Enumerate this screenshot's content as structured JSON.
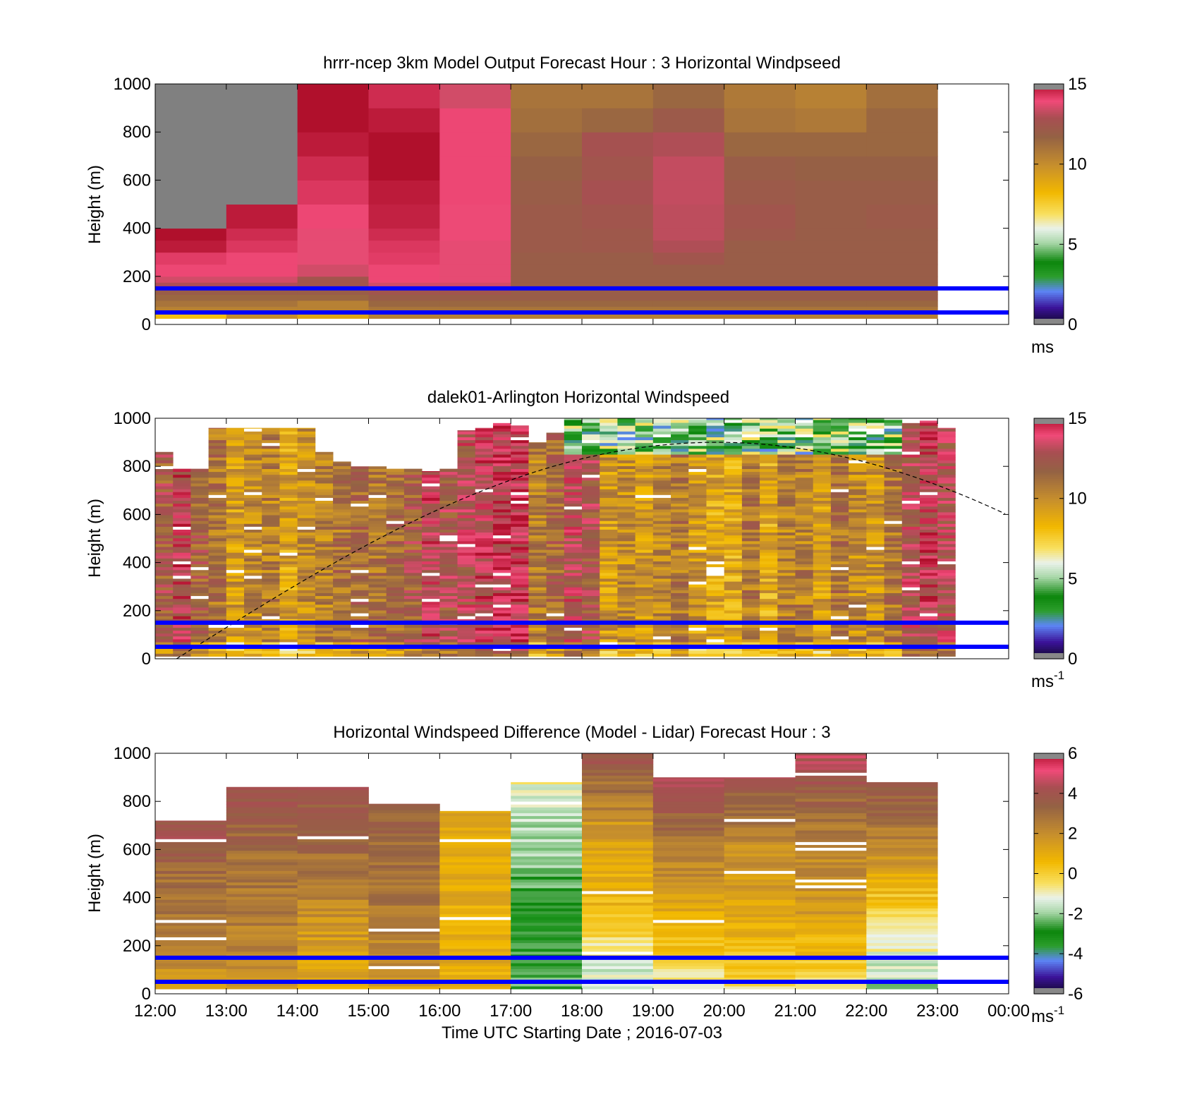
{
  "chart_data": [
    {
      "type": "heatmap",
      "title": "hrrr-ncep 3km Model Output   Forecast Hour : 3 Horizontal Windpseed",
      "ylabel": "Height (m)",
      "ylim": [
        0,
        1000
      ],
      "yticks": [
        "0",
        "200",
        "400",
        "600",
        "800",
        "1000"
      ],
      "x_range_hours": [
        12,
        24
      ],
      "colorbar": {
        "ticks": [
          "0",
          "5",
          "10",
          "15"
        ],
        "range": [
          0,
          15
        ],
        "unit": "ms",
        "unit_sup": ""
      },
      "reference_lines_m": [
        150,
        50
      ],
      "time_bins_start_hours": [
        12,
        13,
        14,
        15,
        16,
        17,
        18,
        19,
        20,
        21,
        22
      ],
      "height_levels_m": [
        25,
        50,
        75,
        100,
        125,
        150,
        175,
        200,
        250,
        300,
        350,
        400,
        500,
        600,
        700,
        800,
        900,
        1000
      ],
      "values": [
        [
          8.0,
          10.0,
          9.0,
          10.5,
          10.5,
          10.5,
          10.5,
          10.5,
          10.5,
          10.5,
          10.5
        ],
        [
          10.5,
          10.5,
          10.5,
          11.0,
          11.0,
          11.0,
          11.0,
          11.0,
          11.0,
          11.0,
          11.0
        ],
        [
          11.0,
          11.0,
          10.5,
          11.5,
          11.5,
          11.5,
          11.5,
          11.5,
          11.5,
          11.5,
          11.5
        ],
        [
          11.5,
          11.5,
          11.5,
          12.0,
          12.0,
          12.0,
          12.0,
          12.0,
          12.0,
          12.0,
          12.0
        ],
        [
          12.0,
          12.0,
          12.0,
          12.5,
          12.5,
          12.0,
          12.0,
          12.0,
          12.0,
          12.0,
          12.0
        ],
        [
          13.0,
          13.0,
          12.5,
          13.5,
          13.5,
          12.0,
          12.0,
          12.0,
          12.0,
          12.0,
          12.0
        ],
        [
          13.5,
          13.5,
          12.5,
          14.0,
          13.8,
          12.0,
          12.0,
          12.0,
          12.0,
          12.0,
          12.0
        ],
        [
          14.0,
          14.0,
          13.5,
          14.0,
          13.8,
          12.0,
          12.0,
          12.0,
          12.0,
          12.0,
          12.0
        ],
        [
          14.2,
          14.0,
          13.8,
          14.2,
          13.8,
          12.0,
          12.0,
          12.5,
          12.0,
          12.0,
          12.0
        ],
        [
          14.8,
          14.3,
          13.8,
          14.3,
          13.8,
          12.2,
          12.3,
          13.0,
          12.0,
          12.0,
          12.0
        ],
        [
          15.0,
          14.5,
          13.8,
          14.5,
          13.9,
          12.2,
          12.3,
          13.2,
          12.3,
          12.0,
          12.0
        ],
        [
          null,
          14.8,
          14.0,
          14.7,
          13.9,
          12.2,
          12.5,
          13.2,
          12.5,
          12.0,
          12.2
        ],
        [
          null,
          null,
          14.3,
          14.8,
          14.0,
          12.0,
          12.8,
          13.3,
          12.2,
          12.0,
          12.0
        ],
        [
          null,
          null,
          14.5,
          15.0,
          14.0,
          11.8,
          12.5,
          13.3,
          12.0,
          11.8,
          11.8
        ],
        [
          null,
          null,
          14.8,
          15.0,
          14.0,
          11.5,
          12.7,
          13.0,
          11.5,
          11.5,
          11.5
        ],
        [
          null,
          null,
          15.0,
          14.8,
          14.0,
          11.2,
          11.5,
          12.2,
          11.0,
          10.8,
          11.5
        ],
        [
          null,
          null,
          15.0,
          14.5,
          13.5,
          11.0,
          11.0,
          11.5,
          10.8,
          10.5,
          11.2
        ]
      ]
    },
    {
      "type": "heatmap",
      "title": "dalek01-Arlington  Horizontal Windspeed",
      "ylabel": "Height (m)",
      "ylim": [
        0,
        1000
      ],
      "yticks": [
        "0",
        "200",
        "400",
        "600",
        "800",
        "1000"
      ],
      "x_range_hours": [
        12,
        24
      ],
      "colorbar": {
        "ticks": [
          "0",
          "5",
          "10",
          "15"
        ],
        "range": [
          0,
          15
        ],
        "unit": "ms",
        "unit_sup": "-1"
      },
      "reference_lines_m": [
        150,
        50
      ],
      "column_width_hours": 0.25,
      "column_tops_m": [
        860,
        790,
        790,
        960,
        960,
        960,
        960,
        960,
        960,
        860,
        820,
        800,
        800,
        790,
        790,
        780,
        790,
        950,
        960,
        980,
        970,
        900,
        940,
        1000,
        1000,
        1000,
        1000,
        1000,
        1000,
        1000,
        1000,
        1000,
        1000,
        1000,
        1000,
        1000,
        1000,
        1000,
        1000,
        1000,
        1000,
        1000,
        980,
        990,
        960
      ],
      "column_mean_speed": [
        12.0,
        13.5,
        11.8,
        11.0,
        9.5,
        10.2,
        10.5,
        9.2,
        10.0,
        10.5,
        11.0,
        11.5,
        11.0,
        11.5,
        12.0,
        13.5,
        12.5,
        13.0,
        13.5,
        13.8,
        14.0,
        10.5,
        11.5,
        13.0,
        12.5,
        9.5,
        10.0,
        9.5,
        10.0,
        10.8,
        9.5,
        9.0,
        9.0,
        10.8,
        9.0,
        10.5,
        10.5,
        9.5,
        11.0,
        10.0,
        9.8,
        11.0,
        13.0,
        13.5,
        13.0
      ],
      "overlay_curve": {
        "style": "dashed",
        "peak_height_m": 900,
        "peak_time_hours": 19.9
      }
    },
    {
      "type": "heatmap",
      "title": "Horizontal Windspeed Difference (Model - Lidar) Forecast Hour : 3",
      "ylabel": "Height (m)",
      "xlabel": "Time UTC  Starting Date ; 2016-07-03",
      "ylim": [
        0,
        1000
      ],
      "yticks": [
        "0",
        "200",
        "400",
        "600",
        "800",
        "1000"
      ],
      "xticks": [
        "12:00",
        "13:00",
        "14:00",
        "15:00",
        "16:00",
        "17:00",
        "18:00",
        "19:00",
        "20:00",
        "21:00",
        "22:00",
        "23:00",
        "00:00"
      ],
      "x_range_hours": [
        12,
        24
      ],
      "colorbar": {
        "ticks": [
          "-6",
          "-4",
          "-2",
          "0",
          "2",
          "4",
          "6"
        ],
        "range": [
          -6,
          6
        ],
        "unit": "ms",
        "unit_sup": "-1"
      },
      "reference_lines_m": [
        150,
        50
      ],
      "time_bins_start_hours": [
        12,
        13,
        14,
        15,
        16,
        17,
        18,
        19,
        20,
        21,
        22
      ],
      "column_tops_m": [
        720,
        860,
        860,
        790,
        760,
        880,
        1000,
        900,
        900,
        1000,
        880
      ],
      "column_difference_low_to_high": [
        [
          1.5,
          2.5,
          3.0,
          4.2
        ],
        [
          1.8,
          2.5,
          3.0,
          4.0
        ],
        [
          1.0,
          1.8,
          3.0,
          4.0
        ],
        [
          1.5,
          2.5,
          3.0,
          3.5
        ],
        [
          1.0,
          1.0,
          1.0,
          1.5
        ],
        [
          -2.5,
          -3.0,
          -2.0,
          -1.0
        ],
        [
          -2.0,
          0.5,
          1.5,
          4.0
        ],
        [
          -1.0,
          1.0,
          2.5,
          4.5
        ],
        [
          -0.5,
          1.0,
          2.0,
          4.0
        ],
        [
          -0.5,
          1.5,
          2.5,
          4.5
        ],
        [
          -2.0,
          -0.5,
          2.0,
          4.0
        ]
      ]
    }
  ]
}
